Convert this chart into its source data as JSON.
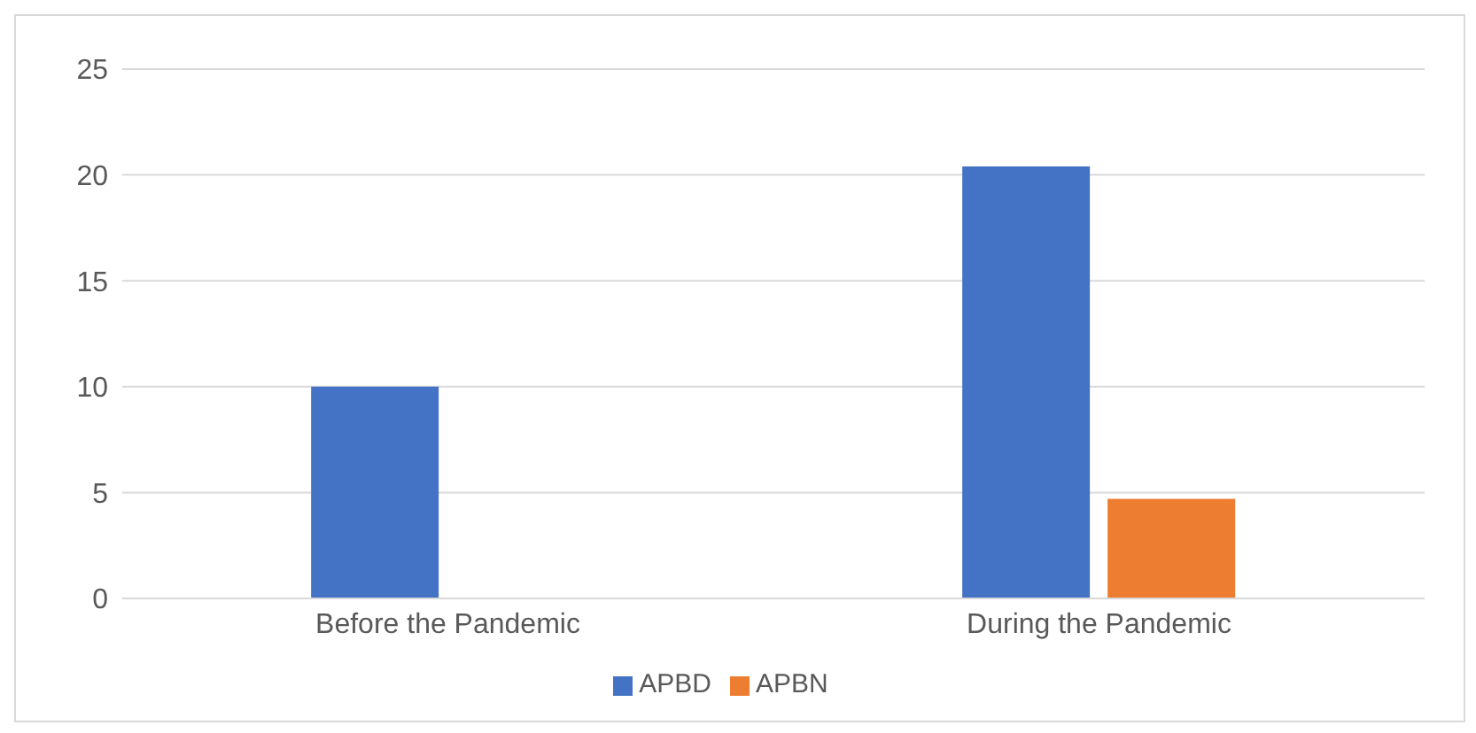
{
  "chart_data": {
    "type": "bar",
    "categories": [
      "Before the Pandemic",
      "During the Pandemic"
    ],
    "series": [
      {
        "name": "APBD",
        "color": "#4472c4",
        "values": [
          10,
          20.4
        ]
      },
      {
        "name": "APBN",
        "color": "#ed7d31",
        "values": [
          0,
          4.7
        ]
      }
    ],
    "ylim": [
      0,
      25
    ],
    "yticks": [
      0,
      5,
      10,
      15,
      20,
      25
    ],
    "grid": "y",
    "legend": "bottom"
  }
}
